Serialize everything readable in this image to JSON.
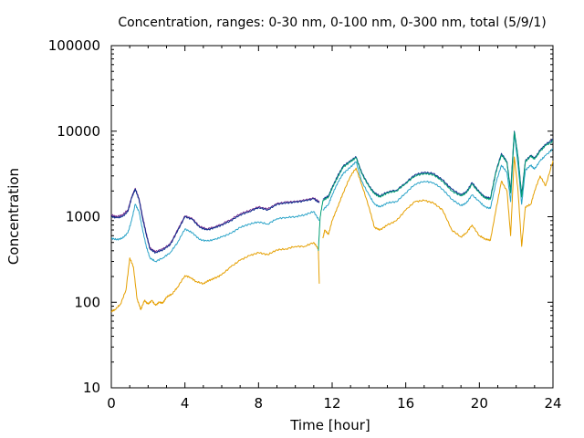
{
  "chart_data": {
    "type": "line",
    "title": "Concentration, ranges: 0-30 nm, 0-100 nm, 0-300 nm, total (5/9/1)",
    "xlabel": "Time [hour]",
    "ylabel": "Concentration",
    "xlim": [
      0,
      24
    ],
    "ylim": [
      10,
      100000
    ],
    "yscale": "log",
    "grid": false,
    "legend": "none",
    "x_ticks": [
      "0",
      "4",
      "8",
      "12",
      "16",
      "20",
      "24"
    ],
    "y_ticks": [
      "10",
      "100",
      "1000",
      "10000",
      "100000"
    ],
    "x_tick_values": [
      0,
      4,
      8,
      12,
      16,
      20,
      24
    ],
    "y_tick_values": [
      10,
      100,
      1000,
      10000,
      100000
    ],
    "series": [
      {
        "color": "#e59f00",
        "x": [
          0,
          0.2,
          0.5,
          0.8,
          1.0,
          1.2,
          1.4,
          1.6,
          1.8,
          2.0,
          2.2,
          2.4,
          2.6,
          2.8,
          3.0,
          3.3,
          3.6,
          4.0,
          4.3,
          4.6,
          5.0,
          5.3,
          5.6,
          6.0,
          6.5,
          7.0,
          7.5,
          8.0,
          8.5,
          9.0,
          9.5,
          10.0,
          10.5,
          11.0,
          11.25,
          11.3
        ],
        "y": [
          78,
          82,
          95,
          140,
          330,
          260,
          110,
          82,
          105,
          95,
          105,
          92,
          100,
          98,
          115,
          125,
          150,
          205,
          195,
          175,
          165,
          180,
          190,
          210,
          260,
          310,
          350,
          380,
          360,
          410,
          420,
          450,
          450,
          500,
          420,
          165
        ]
      },
      {
        "color": "#e59f00",
        "x": [
          11.5,
          11.6,
          11.8,
          12.0,
          12.3,
          12.6,
          13.0,
          13.3,
          13.6,
          14.0,
          14.3,
          14.6,
          15.0,
          15.5,
          16.0,
          16.5,
          17.0,
          17.5,
          18.0,
          18.5,
          19.0,
          19.3,
          19.6,
          20.0,
          20.3,
          20.6,
          20.9,
          21.2,
          21.5,
          21.7,
          21.9,
          22.1,
          22.3,
          22.5,
          22.8,
          23.0,
          23.3,
          23.6,
          24.0
        ],
        "y": [
          560,
          700,
          620,
          900,
          1300,
          1900,
          3000,
          3700,
          2400,
          1300,
          750,
          700,
          800,
          900,
          1200,
          1500,
          1550,
          1450,
          1200,
          700,
          580,
          650,
          800,
          600,
          550,
          530,
          1200,
          2600,
          2000,
          600,
          5000,
          2000,
          450,
          1300,
          1400,
          2000,
          3000,
          2300,
          4500
        ]
      },
      {
        "color": "#2aa3c8",
        "x": [
          0,
          0.3,
          0.6,
          0.9,
          1.1,
          1.3,
          1.5,
          1.7,
          1.9,
          2.1,
          2.4,
          2.8,
          3.2,
          3.6,
          4.0,
          4.4,
          4.8,
          5.2,
          5.6,
          6.0,
          6.5,
          7.0,
          7.5,
          8.0,
          8.5,
          9.0,
          9.5,
          10.0,
          10.5,
          11.0,
          11.3
        ],
        "y": [
          560,
          540,
          560,
          650,
          900,
          1400,
          1150,
          700,
          450,
          330,
          300,
          330,
          380,
          500,
          720,
          650,
          540,
          520,
          540,
          580,
          640,
          750,
          820,
          870,
          820,
          950,
          980,
          1000,
          1050,
          1150,
          900
        ]
      },
      {
        "color": "#2aa3c8",
        "x": [
          11.5,
          11.8,
          12.0,
          12.3,
          12.6,
          13.0,
          13.3,
          13.6,
          14.0,
          14.3,
          14.6,
          15.0,
          15.5,
          16.0,
          16.5,
          17.0,
          17.5,
          18.0,
          18.5,
          19.0,
          19.3,
          19.6,
          20.0,
          20.3,
          20.6,
          20.9,
          21.2,
          21.5,
          21.7,
          21.9,
          22.1,
          22.3,
          22.5,
          22.8,
          23.0,
          23.3,
          23.6,
          24.0
        ],
        "y": [
          1200,
          1400,
          1800,
          2500,
          3200,
          3800,
          4400,
          2600,
          1800,
          1400,
          1300,
          1450,
          1500,
          1900,
          2400,
          2600,
          2500,
          2100,
          1600,
          1350,
          1450,
          1800,
          1500,
          1300,
          1250,
          2500,
          4000,
          3300,
          1500,
          9500,
          4000,
          1400,
          3500,
          4000,
          3600,
          4500,
          5200,
          6200
        ]
      },
      {
        "color": "#7b2d8e",
        "x": [
          0,
          0.3,
          0.6,
          0.9,
          1.1,
          1.3,
          1.5,
          1.7,
          1.9,
          2.1,
          2.4,
          2.8,
          3.2,
          3.6,
          4.0,
          4.4,
          4.8,
          5.2,
          5.6,
          6.0,
          6.5,
          7.0,
          7.5,
          8.0,
          8.5,
          9.0,
          9.5,
          10.0,
          10.5,
          11.0,
          11.3
        ],
        "y": [
          1050,
          1000,
          1050,
          1200,
          1700,
          2150,
          1650,
          1000,
          640,
          430,
          390,
          420,
          480,
          700,
          1020,
          950,
          770,
          720,
          760,
          820,
          930,
          1080,
          1180,
          1300,
          1230,
          1420,
          1480,
          1500,
          1560,
          1650,
          1500
        ]
      },
      {
        "color": "#0a2b8c",
        "x": [
          0,
          0.3,
          0.6,
          0.9,
          1.1,
          1.3,
          1.5,
          1.7,
          1.9,
          2.1,
          2.4,
          2.8,
          3.2,
          3.6,
          4.0,
          4.4,
          4.8,
          5.2,
          5.6,
          6.0,
          6.5,
          7.0,
          7.5,
          8.0,
          8.5,
          9.0,
          9.5,
          10.0,
          10.5,
          11.0,
          11.3
        ],
        "y": [
          1000,
          970,
          1000,
          1150,
          1650,
          2100,
          1600,
          950,
          620,
          420,
          380,
          410,
          470,
          680,
          1000,
          930,
          750,
          700,
          740,
          800,
          900,
          1050,
          1150,
          1280,
          1200,
          1400,
          1450,
          1480,
          1530,
          1620,
          1450
        ]
      },
      {
        "color": "#0a2b8c",
        "x": [
          11.5,
          11.8,
          12.0,
          12.3,
          12.6,
          13.0,
          13.3,
          13.6,
          14.0,
          14.3,
          14.6,
          15.0,
          15.5,
          16.0,
          16.5,
          17.0,
          17.5,
          18.0,
          18.5,
          19.0,
          19.3,
          19.6,
          20.0,
          20.3,
          20.6,
          20.9,
          21.2,
          21.5,
          21.7,
          21.9,
          22.1,
          22.3,
          22.5,
          22.8,
          23.0,
          23.3,
          23.6,
          24.0
        ],
        "y": [
          1600,
          1750,
          2200,
          3000,
          3900,
          4500,
          5000,
          3300,
          2300,
          1900,
          1750,
          1950,
          2050,
          2500,
          3100,
          3300,
          3200,
          2700,
          2100,
          1800,
          1950,
          2500,
          1950,
          1700,
          1650,
          3400,
          5500,
          4400,
          2000,
          10000,
          5000,
          1800,
          4500,
          5200,
          4800,
          6000,
          7000,
          8000
        ]
      },
      {
        "color": "#009e73",
        "x": [
          11.25,
          11.35,
          11.5,
          11.8,
          12.0,
          12.3,
          12.6,
          13.0,
          13.3,
          13.6,
          14.0,
          14.3,
          14.6,
          15.0,
          15.5,
          16.0,
          16.5,
          17.0,
          17.5,
          18.0,
          18.5,
          19.0,
          19.3,
          19.6,
          20.0,
          20.3,
          20.6,
          20.9,
          21.2,
          21.5,
          21.7,
          21.9,
          22.1,
          22.3,
          22.5,
          22.8,
          23.0,
          23.3,
          23.6,
          24.0
        ],
        "y": [
          400,
          1000,
          1550,
          1700,
          2150,
          2900,
          3800,
          4400,
          4900,
          3200,
          2250,
          1850,
          1700,
          1900,
          2000,
          2450,
          3000,
          3200,
          3100,
          2600,
          2000,
          1750,
          1900,
          2400,
          1900,
          1650,
          1600,
          3300,
          5300,
          4300,
          1900,
          9800,
          4900,
          1700,
          4400,
          5100,
          4700,
          5800,
          6800,
          7600
        ]
      }
    ]
  }
}
